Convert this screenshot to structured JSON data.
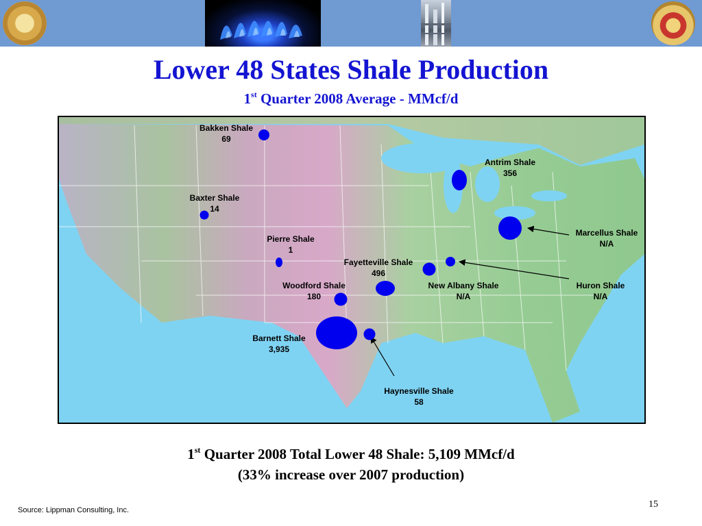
{
  "header": {
    "left_seal_icon": "california-seal-icon",
    "flame_image": "gas-burner-flame",
    "plant_image": "gas-processing-plant",
    "right_seal_icon": "agency-seal-icon",
    "band_color": "#6f9ad2"
  },
  "title": "Lower 48 States Shale Production",
  "subtitle": {
    "sup": "st",
    "before": "1",
    "after": " Quarter 2008 Average - MMcf/d"
  },
  "map": {
    "units": "MMcf/d",
    "marker_color": "#0000ee",
    "plays": [
      {
        "name": "Bakken Shale",
        "value": "69"
      },
      {
        "name": "Antrim Shale",
        "value": "356"
      },
      {
        "name": "Baxter Shale",
        "value": "14"
      },
      {
        "name": "Marcellus Shale",
        "value": "N/A"
      },
      {
        "name": "Pierre Shale",
        "value": "1"
      },
      {
        "name": "Fayetteville Shale",
        "value": "496"
      },
      {
        "name": "Woodford Shale",
        "value": "180"
      },
      {
        "name": "New Albany Shale",
        "value": "N/A"
      },
      {
        "name": "Huron Shale",
        "value": "N/A"
      },
      {
        "name": "Barnett Shale",
        "value": "3,935"
      },
      {
        "name": "Haynesville Shale",
        "value": "58"
      }
    ]
  },
  "footer": {
    "line1": {
      "before": "1",
      "sup": "st",
      "after": " Quarter 2008 Total Lower 48 Shale: 5,109 MMcf/d"
    },
    "line2": "(33% increase over 2007 production)"
  },
  "source": "Source: Lippman Consulting, Inc.",
  "page_number": "15"
}
